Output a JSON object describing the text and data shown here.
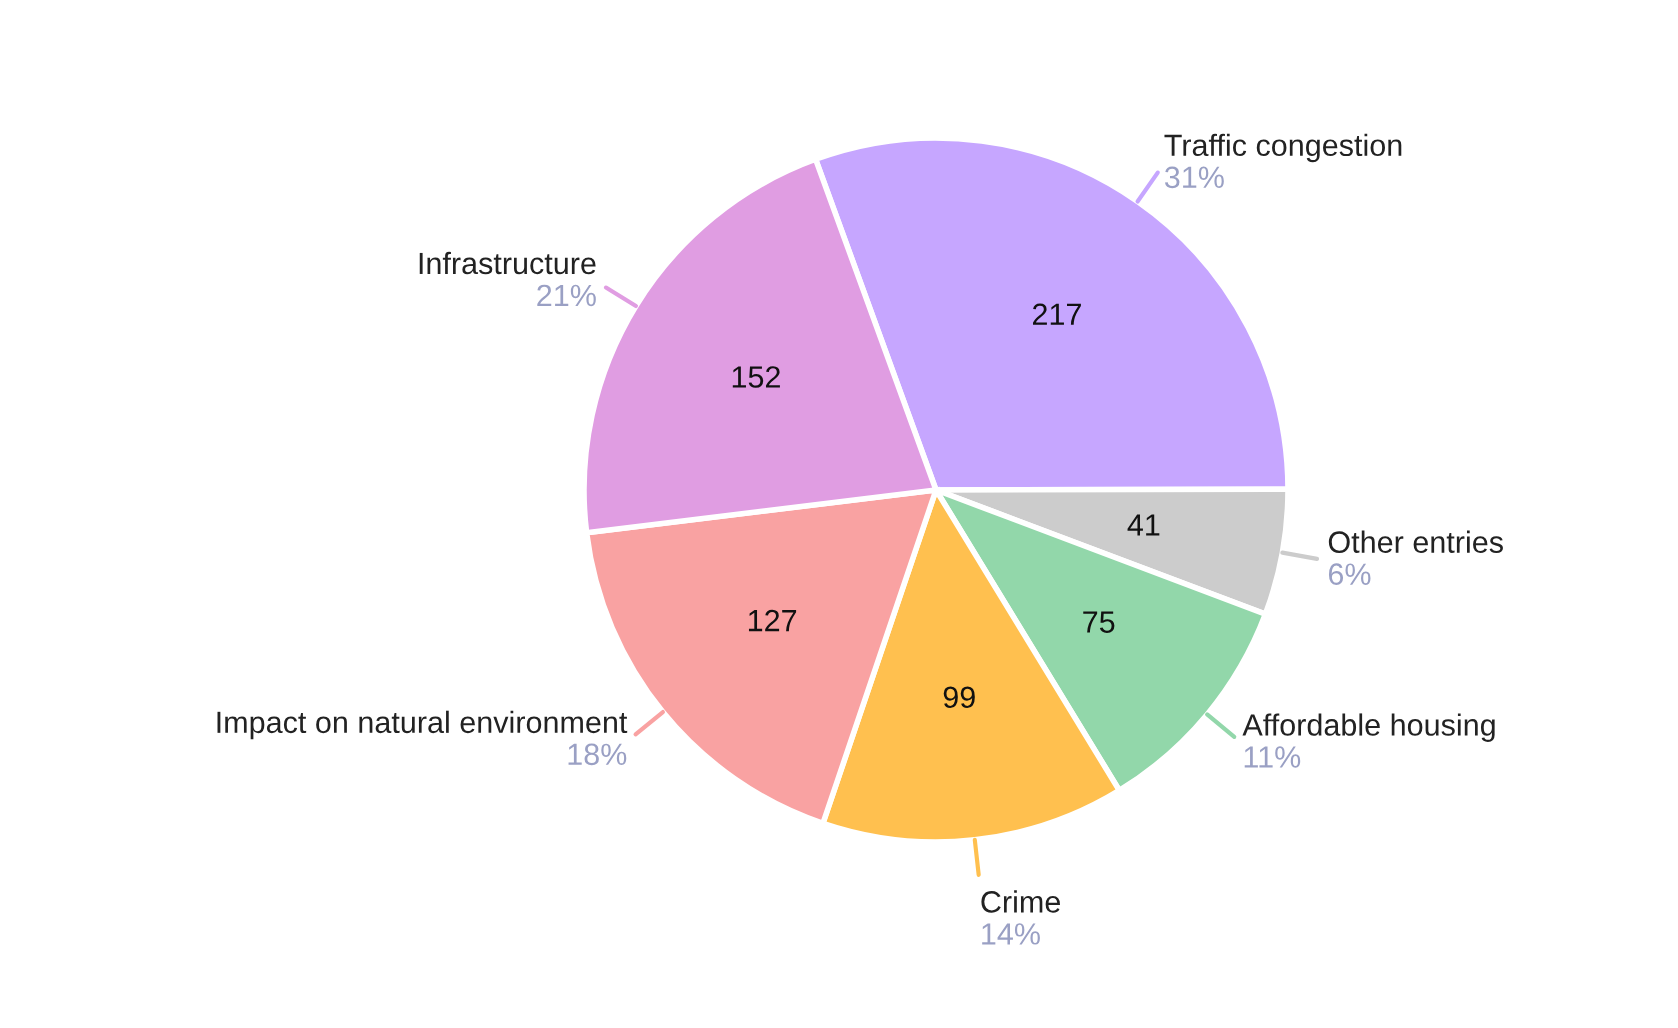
{
  "chart_data": {
    "type": "pie",
    "categories": [
      "Traffic congestion",
      "Other entries",
      "Affordable housing",
      "Crime",
      "Impact on natural environment",
      "Infrastructure"
    ],
    "values": [
      217,
      41,
      75,
      99,
      127,
      152
    ],
    "colors": [
      "#c6a6ff",
      "#cccccc",
      "#92d7aa",
      "#ffc04f",
      "#f9a2a2",
      "#e09de2"
    ],
    "value_labels": [
      "217",
      "41",
      "75",
      "99",
      "127",
      "152"
    ],
    "annotations": [
      "31%",
      "6%",
      "11%",
      "14%",
      "18%",
      "21%"
    ],
    "legend": false
  }
}
